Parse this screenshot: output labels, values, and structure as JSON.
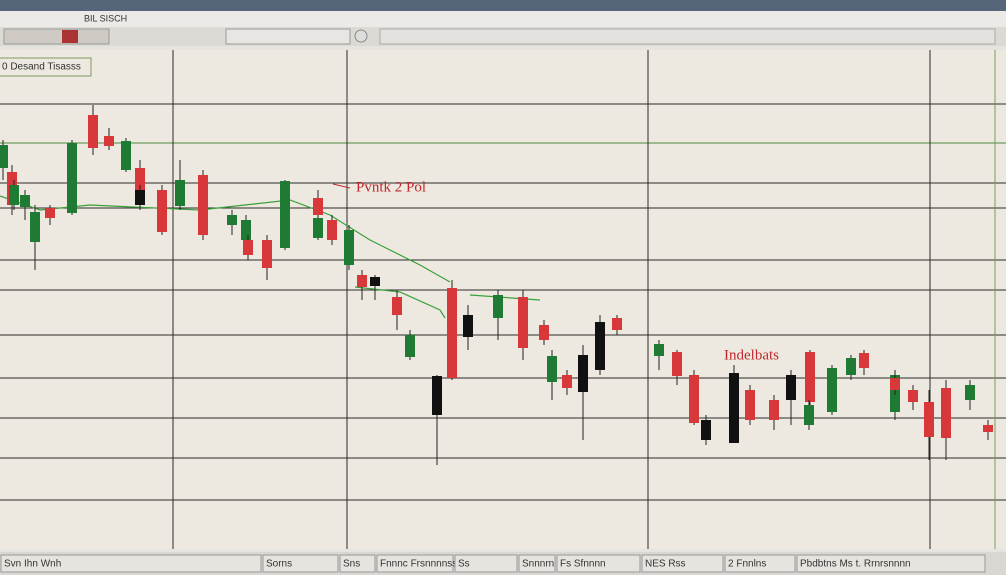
{
  "toolbar": {
    "title": "BIL SISCH",
    "chart_label": "0 Desand Tisasss"
  },
  "annotations": [
    "Pvntk 2 Pol",
    "Indelbats"
  ],
  "status_bar": [
    "Svn Ihn Wnh",
    "Sorns",
    "Sns",
    "Fnnnc Frsnnnnss",
    "Ss",
    "Snnnrn",
    "Fs Sfnnnn",
    "NES Rss",
    "2 Fnnlns",
    "Pbdbtns Ms t. Rrnrsnnnn"
  ]
}
